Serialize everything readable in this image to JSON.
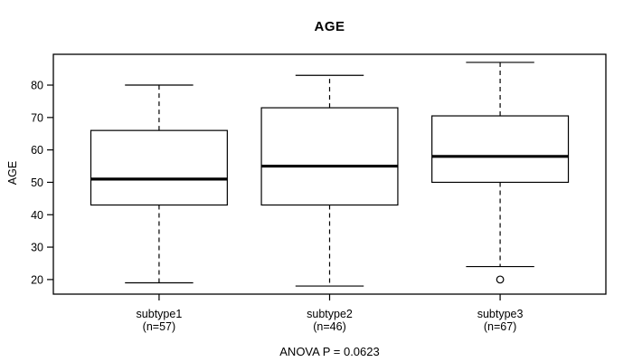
{
  "chart_data": {
    "type": "boxplot",
    "title": "AGE",
    "ylabel": "AGE",
    "xlabel": "",
    "ylim": [
      15.5,
      89.5
    ],
    "yticks": [
      20,
      30,
      40,
      50,
      60,
      70,
      80
    ],
    "grid": false,
    "legend": null,
    "note": "ANOVA P = 0.0623",
    "groups": [
      {
        "label": "subtype1",
        "sublabel": "(n=57)",
        "n": 57,
        "stats": {
          "low": 19,
          "q1": 43,
          "median": 51,
          "q3": 66,
          "high": 80
        },
        "outliers": []
      },
      {
        "label": "subtype2",
        "sublabel": "(n=46)",
        "n": 46,
        "stats": {
          "low": 18,
          "q1": 43,
          "median": 55,
          "q3": 73,
          "high": 83
        },
        "outliers": []
      },
      {
        "label": "subtype3",
        "sublabel": "(n=67)",
        "n": 67,
        "stats": {
          "low": 24,
          "q1": 50,
          "median": 58,
          "q3": 70.5,
          "high": 87
        },
        "outliers": [
          20
        ]
      }
    ],
    "colors": {
      "line": "#000000",
      "box_fill": "#ffffff",
      "background": "#ffffff"
    }
  }
}
